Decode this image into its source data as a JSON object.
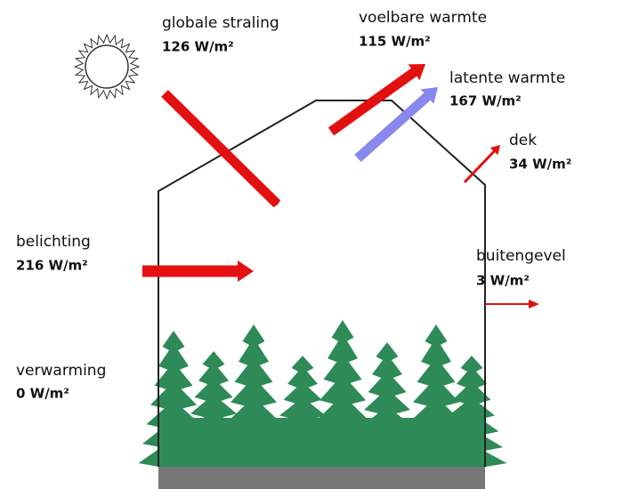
{
  "flows": [
    {
      "label": "globale straling",
      "value": "126 W/m²"
    },
    {
      "label": "voelbare warmte",
      "value": "115 W/m²"
    },
    {
      "label": "latente warmte",
      "value": "167 W/m²"
    },
    {
      "label": "dek",
      "value": "34 W/m²"
    },
    {
      "label": "belichting",
      "value": "216 W/m²"
    },
    {
      "label": "buitengevel",
      "value": "3 W/m²"
    },
    {
      "label": "verwarming",
      "value": "0 W/m²"
    }
  ]
}
